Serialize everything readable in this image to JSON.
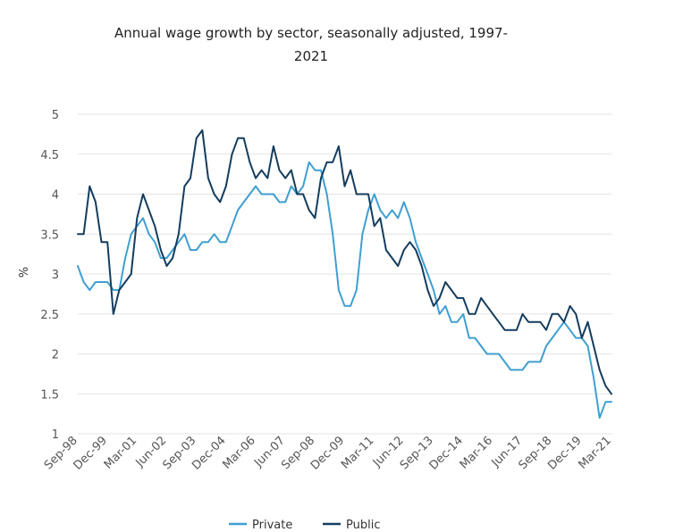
{
  "chart_data": {
    "type": "line",
    "title": "Annual wage growth by sector, seasonally adjusted, 1997-2021",
    "xlabel": "",
    "ylabel": "%",
    "ylim": [
      1,
      5
    ],
    "yticks": [
      "1",
      "1.5",
      "2",
      "2.5",
      "3",
      "3.5",
      "4",
      "4.5",
      "5"
    ],
    "x_tick_labels": [
      "Sep-98",
      "Dec-99",
      "Mar-01",
      "Jun-02",
      "Sep-03",
      "Dec-04",
      "Mar-06",
      "Jun-07",
      "Sep-08",
      "Dec-09",
      "Mar-11",
      "Jun-12",
      "Sep-13",
      "Dec-14",
      "Mar-16",
      "Jun-17",
      "Sep-18",
      "Dec-19",
      "Mar-21"
    ],
    "x": [
      "Sep-98",
      "Dec-98",
      "Mar-99",
      "Jun-99",
      "Sep-99",
      "Dec-99",
      "Mar-00",
      "Jun-00",
      "Sep-00",
      "Dec-00",
      "Mar-01",
      "Jun-01",
      "Sep-01",
      "Dec-01",
      "Mar-02",
      "Jun-02",
      "Sep-02",
      "Dec-02",
      "Mar-03",
      "Jun-03",
      "Sep-03",
      "Dec-03",
      "Mar-04",
      "Jun-04",
      "Sep-04",
      "Dec-04",
      "Mar-05",
      "Jun-05",
      "Sep-05",
      "Dec-05",
      "Mar-06",
      "Jun-06",
      "Sep-06",
      "Dec-06",
      "Mar-07",
      "Jun-07",
      "Sep-07",
      "Dec-07",
      "Mar-08",
      "Jun-08",
      "Sep-08",
      "Dec-08",
      "Mar-09",
      "Jun-09",
      "Sep-09",
      "Dec-09",
      "Mar-10",
      "Jun-10",
      "Sep-10",
      "Dec-10",
      "Mar-11",
      "Jun-11",
      "Sep-11",
      "Dec-11",
      "Mar-12",
      "Jun-12",
      "Sep-12",
      "Dec-12",
      "Mar-13",
      "Jun-13",
      "Sep-13",
      "Dec-13",
      "Mar-14",
      "Jun-14",
      "Sep-14",
      "Dec-14",
      "Mar-15",
      "Jun-15",
      "Sep-15",
      "Dec-15",
      "Mar-16",
      "Jun-16",
      "Sep-16",
      "Dec-16",
      "Mar-17",
      "Jun-17",
      "Sep-17",
      "Dec-17",
      "Mar-18",
      "Jun-18",
      "Sep-18",
      "Dec-18",
      "Mar-19",
      "Jun-19",
      "Sep-19",
      "Dec-19",
      "Mar-20",
      "Jun-20",
      "Sep-20",
      "Dec-20",
      "Mar-21"
    ],
    "series": [
      {
        "name": "Private",
        "color": "#3f9fd1",
        "values": [
          3.1,
          2.9,
          2.8,
          2.9,
          2.9,
          2.9,
          2.8,
          2.8,
          3.2,
          3.5,
          3.6,
          3.7,
          3.5,
          3.4,
          3.2,
          3.2,
          3.3,
          3.4,
          3.5,
          3.3,
          3.3,
          3.4,
          3.4,
          3.5,
          3.4,
          3.4,
          3.6,
          3.8,
          3.9,
          4.0,
          4.1,
          4.0,
          4.0,
          4.0,
          3.9,
          3.9,
          4.1,
          4.0,
          4.1,
          4.4,
          4.3,
          4.3,
          4.0,
          3.5,
          2.8,
          2.6,
          2.6,
          2.8,
          3.5,
          3.8,
          4.0,
          3.8,
          3.7,
          3.8,
          3.7,
          3.9,
          3.7,
          3.4,
          3.2,
          3.0,
          2.8,
          2.5,
          2.6,
          2.4,
          2.4,
          2.5,
          2.2,
          2.2,
          2.1,
          2.0,
          2.0,
          2.0,
          1.9,
          1.8,
          1.8,
          1.8,
          1.9,
          1.9,
          1.9,
          2.1,
          2.2,
          2.3,
          2.4,
          2.3,
          2.2,
          2.2,
          2.1,
          1.7,
          1.2,
          1.4,
          1.4
        ]
      },
      {
        "name": "Public",
        "color": "#143d5e",
        "values": [
          3.5,
          3.5,
          4.1,
          3.9,
          3.4,
          3.4,
          2.5,
          2.8,
          2.9,
          3.0,
          3.7,
          4.0,
          3.8,
          3.6,
          3.3,
          3.1,
          3.2,
          3.5,
          4.1,
          4.2,
          4.7,
          4.8,
          4.2,
          4.0,
          3.9,
          4.1,
          4.5,
          4.7,
          4.7,
          4.4,
          4.2,
          4.3,
          4.2,
          4.6,
          4.3,
          4.2,
          4.3,
          4.0,
          4.0,
          3.8,
          3.7,
          4.2,
          4.4,
          4.4,
          4.6,
          4.1,
          4.3,
          4.0,
          4.0,
          4.0,
          3.6,
          3.7,
          3.3,
          3.2,
          3.1,
          3.3,
          3.4,
          3.3,
          3.1,
          2.8,
          2.6,
          2.7,
          2.9,
          2.8,
          2.7,
          2.7,
          2.5,
          2.5,
          2.7,
          2.6,
          2.5,
          2.4,
          2.3,
          2.3,
          2.3,
          2.5,
          2.4,
          2.4,
          2.4,
          2.3,
          2.5,
          2.5,
          2.4,
          2.6,
          2.5,
          2.2,
          2.4,
          2.1,
          1.8,
          1.6,
          1.5
        ]
      }
    ],
    "grid": true,
    "legend_position": "bottom"
  }
}
